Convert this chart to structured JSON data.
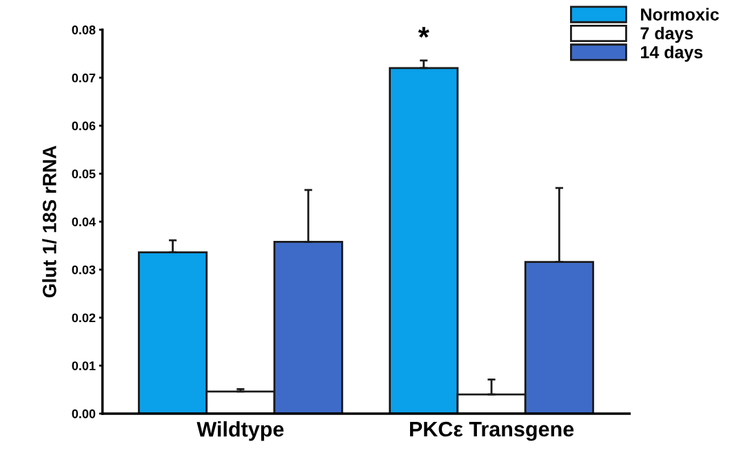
{
  "chart_data": {
    "type": "bar",
    "ylabel": "Glut 1/ 18S rRNA",
    "categories": [
      "Wildtype",
      "PKCε Transgene"
    ],
    "series": [
      {
        "name": "Normoxic",
        "color": "#0aa0ea",
        "values": [
          0.0336,
          0.072
        ],
        "errors": [
          [
            0.0336,
            0.0361
          ],
          [
            0.072,
            0.0736
          ]
        ]
      },
      {
        "name": "7 days",
        "color": "#ffffff",
        "values": [
          0.0046,
          0.004
        ],
        "errors": [
          [
            0.0046,
            0.0051
          ],
          [
            0.004,
            0.0071
          ]
        ]
      },
      {
        "name": "14 days",
        "color": "#3f6bc8",
        "values": [
          0.0358,
          0.0316
        ],
        "errors": [
          [
            0.0358,
            0.0466
          ],
          [
            0.0316,
            0.047
          ]
        ]
      }
    ],
    "ylim": [
      0,
      0.08
    ],
    "yticks": [
      {
        "value": 0,
        "label": "0.00"
      },
      {
        "value": 0.01,
        "label": "0.01"
      },
      {
        "value": 0.02,
        "label": "0.02"
      },
      {
        "value": 0.03,
        "label": "0.03"
      },
      {
        "value": 0.04,
        "label": "0.04"
      },
      {
        "value": 0.05,
        "label": "0.05"
      },
      {
        "value": 0.06,
        "label": "0.06"
      },
      {
        "value": 0.07,
        "label": "0.07"
      },
      {
        "value": 0.08,
        "label": "0.08"
      }
    ],
    "annotations": [
      "*"
    ],
    "grid": false,
    "legend": "top right"
  }
}
